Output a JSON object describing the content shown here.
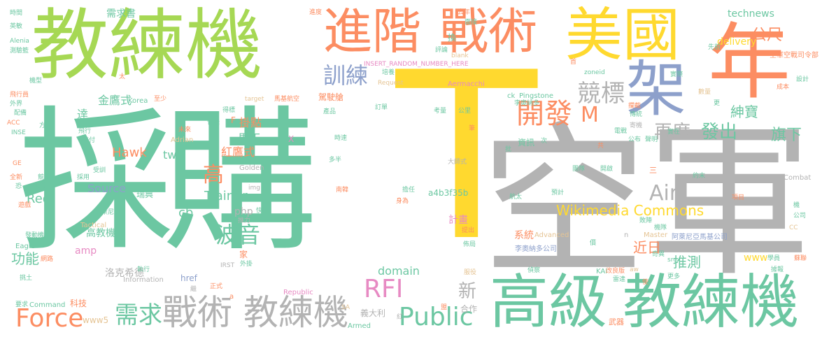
{
  "palette": {
    "teal": "#6cc7a2",
    "green": "#a6d854",
    "orange": "#fc8d62",
    "yellow": "#ffd92f",
    "grey": "#b3b3b3",
    "blue": "#8da0cb",
    "pink": "#e78ac3",
    "tan": "#e5c494"
  },
  "words": [
    {
      "id": "w0",
      "text": "採購",
      "color": "teal"
    },
    {
      "id": "w1",
      "text": "T",
      "color": "yellow"
    },
    {
      "id": "w2",
      "text": "空軍",
      "color": "grey"
    },
    {
      "id": "w3",
      "text": "教練機",
      "color": "green"
    },
    {
      "id": "w4",
      "text": "高級",
      "color": "teal"
    },
    {
      "id": "w5",
      "text": "教練機",
      "color": "teal"
    },
    {
      "id": "w6",
      "text": "進階",
      "color": "orange"
    },
    {
      "id": "w7",
      "text": "戰術",
      "color": "orange"
    },
    {
      "id": "w8",
      "text": "美國",
      "color": "yellow"
    },
    {
      "id": "w9",
      "text": "年",
      "color": "orange"
    },
    {
      "id": "w10",
      "text": "架",
      "color": "blue"
    },
    {
      "id": "w11",
      "text": "戰術",
      "color": "grey"
    },
    {
      "id": "w12",
      "text": "教練機",
      "color": "grey"
    },
    {
      "id": "w13",
      "text": "Public",
      "color": "teal"
    },
    {
      "id": "w14",
      "text": "Force",
      "color": "orange"
    },
    {
      "id": "w15",
      "text": "需求",
      "color": "teal"
    },
    {
      "id": "w16",
      "text": "RFI",
      "color": "pink"
    },
    {
      "id": "w17",
      "text": "開發",
      "color": "orange"
    },
    {
      "id": "w18",
      "text": "競標",
      "color": "grey"
    },
    {
      "id": "w19",
      "text": "M",
      "color": "orange"
    },
    {
      "id": "w20",
      "text": "訓練",
      "color": "blue"
    },
    {
      "id": "w21",
      "text": "公尺",
      "color": "orange"
    },
    {
      "id": "w22",
      "text": "Air",
      "color": "grey"
    },
    {
      "id": "w23",
      "text": "波音",
      "color": "teal"
    },
    {
      "id": "w24",
      "text": "再度",
      "color": "grey"
    },
    {
      "id": "w25",
      "text": "發出",
      "color": "teal"
    },
    {
      "id": "w26",
      "text": "紳寶",
      "color": "teal"
    },
    {
      "id": "w27",
      "text": "旗下",
      "color": "teal"
    },
    {
      "id": "w28",
      "text": "推測",
      "color": "teal"
    },
    {
      "id": "w29",
      "text": "近日",
      "color": "orange"
    },
    {
      "id": "w30",
      "text": "Wikimedia Commons",
      "color": "yellow"
    },
    {
      "id": "w31",
      "text": "新",
      "color": "grey"
    },
    {
      "id": "w32",
      "text": "高",
      "color": "orange"
    },
    {
      "id": "w33",
      "text": "功能",
      "color": "teal"
    },
    {
      "id": "w34",
      "text": "Red",
      "color": "teal"
    },
    {
      "id": "w35",
      "text": "Hawk",
      "color": "orange"
    },
    {
      "id": "w36",
      "text": "Trainer",
      "color": "teal"
    },
    {
      "id": "w37",
      "text": "Source",
      "color": "blue"
    },
    {
      "id": "w38",
      "text": "cb",
      "color": "teal"
    },
    {
      "id": "w39",
      "text": "php",
      "color": "grey"
    },
    {
      "id": "w40",
      "text": "domain",
      "color": "teal"
    },
    {
      "id": "w41",
      "text": "紅鷹式",
      "color": "orange"
    },
    {
      "id": "w42",
      "text": "馬丁",
      "color": "teal"
    },
    {
      "id": "w43",
      "text": "掛點",
      "color": "orange"
    },
    {
      "id": "w44",
      "text": "金鷹式",
      "color": "teal"
    },
    {
      "id": "w45",
      "text": "達",
      "color": "teal"
    },
    {
      "id": "w46",
      "text": "tw",
      "color": "teal"
    },
    {
      "id": "w47",
      "text": "www",
      "color": "yellow"
    },
    {
      "id": "w48",
      "text": "technews",
      "color": "teal"
    },
    {
      "id": "w49",
      "text": "delivery",
      "color": "yellow"
    },
    {
      "id": "w50",
      "text": "需求書",
      "color": "teal"
    },
    {
      "id": "w51",
      "text": "amp",
      "color": "pink"
    },
    {
      "id": "w52",
      "text": "高教機",
      "color": "teal"
    },
    {
      "id": "w53",
      "text": "洛克希德",
      "color": "grey"
    },
    {
      "id": "w54",
      "text": "科技",
      "color": "orange"
    },
    {
      "id": "w55",
      "text": "www5",
      "color": "tan"
    },
    {
      "id": "w56",
      "text": "義大利",
      "color": "grey"
    },
    {
      "id": "w57",
      "text": "合作",
      "color": "grey"
    },
    {
      "id": "w58",
      "text": "計畫",
      "color": "pink"
    },
    {
      "id": "w59",
      "text": "系統",
      "color": "orange"
    },
    {
      "id": "w60",
      "text": "a4b3f35b",
      "color": "teal"
    },
    {
      "id": "w61",
      "text": "href",
      "color": "blue"
    },
    {
      "id": "w62",
      "text": "駕駛艙",
      "color": "orange"
    },
    {
      "id": "w63",
      "text": "X",
      "color": "pink"
    },
    {
      "id": "w64",
      "text": "瑞典",
      "color": "teal"
    },
    {
      "id": "w65",
      "text": "F",
      "color": "orange"
    },
    {
      "id": "w66",
      "text": "資訊",
      "color": "teal"
    },
    {
      "id": "w67",
      "text": "李奧納多公司",
      "color": "blue"
    },
    {
      "id": "w68",
      "text": "阿萊尼亞馬基公司",
      "color": "blue"
    },
    {
      "id": "w69",
      "text": "空軍空戰司令部",
      "color": "orange"
    },
    {
      "id": "w70",
      "text": "武器",
      "color": "orange"
    },
    {
      "id": "w71",
      "text": "Armed",
      "color": "teal"
    },
    {
      "id": "w72",
      "text": "Republic",
      "color": "pink"
    },
    {
      "id": "w73",
      "text": "Command",
      "color": "teal"
    },
    {
      "id": "w74",
      "text": "Information",
      "color": "grey"
    },
    {
      "id": "w75",
      "text": "Eagle",
      "color": "teal"
    },
    {
      "id": "w76",
      "text": "Tactical",
      "color": "tan"
    },
    {
      "id": "w77",
      "text": "Golden",
      "color": "grey"
    },
    {
      "id": "w78",
      "text": "Advanced",
      "color": "tan"
    },
    {
      "id": "w79",
      "text": "Master",
      "color": "tan"
    },
    {
      "id": "w80",
      "text": "Combat",
      "color": "grey"
    },
    {
      "id": "w81",
      "text": "Korea",
      "color": "teal"
    },
    {
      "id": "w82",
      "text": "Adrian",
      "color": "tan"
    },
    {
      "id": "w83",
      "text": "Aermacchi",
      "color": "pink"
    },
    {
      "id": "w84",
      "text": "Pingstone",
      "color": "teal"
    },
    {
      "id": "w85",
      "text": "INSERT_RANDOM_NUMBER_HERE",
      "color": "pink"
    },
    {
      "id": "w86",
      "text": "blank",
      "color": "tan"
    },
    {
      "id": "w87",
      "text": "Request",
      "color": "tan"
    },
    {
      "id": "w88",
      "text": "zoneid",
      "color": "teal"
    },
    {
      "id": "w89",
      "text": "target",
      "color": "tan"
    },
    {
      "id": "w90",
      "text": "src",
      "color": "teal"
    },
    {
      "id": "w91",
      "text": "img",
      "color": "grey"
    },
    {
      "id": "w92",
      "text": "ck",
      "color": "teal"
    },
    {
      "id": "w93",
      "text": "KAI",
      "color": "teal"
    },
    {
      "id": "w94",
      "text": "aw",
      "color": "tan"
    },
    {
      "id": "w95",
      "text": "IRST",
      "color": "grey"
    },
    {
      "id": "w96",
      "text": "ACC",
      "color": "orange"
    },
    {
      "id": "w97",
      "text": "INSE",
      "color": "teal"
    },
    {
      "id": "w98",
      "text": "GE",
      "color": "orange"
    },
    {
      "id": "w99",
      "text": "CC",
      "color": "tan"
    },
    {
      "id": "w100",
      "text": "SA",
      "color": "tan"
    },
    {
      "id": "w101",
      "text": "Alenia",
      "color": "teal"
    },
    {
      "id": "w102",
      "text": "時間",
      "color": "teal"
    },
    {
      "id": "w103",
      "text": "英敏",
      "color": "teal"
    },
    {
      "id": "w104",
      "text": "測驗籃",
      "color": "teal"
    },
    {
      "id": "w105",
      "text": "機型",
      "color": "teal"
    },
    {
      "id": "w106",
      "text": "飛行員",
      "color": "orange"
    },
    {
      "id": "w107",
      "text": "外界",
      "color": "teal"
    },
    {
      "id": "w108",
      "text": "配備",
      "color": "teal"
    },
    {
      "id": "w109",
      "text": "方",
      "color": "teal"
    },
    {
      "id": "w110",
      "text": "全新",
      "color": "orange"
    },
    {
      "id": "w111",
      "text": "恐",
      "color": "teal"
    },
    {
      "id": "w112",
      "text": "遊戲",
      "color": "orange"
    },
    {
      "id": "w113",
      "text": "發動機",
      "color": "teal"
    },
    {
      "id": "w114",
      "text": "網路",
      "color": "orange"
    },
    {
      "id": "w115",
      "text": "挑土",
      "color": "teal"
    },
    {
      "id": "w116",
      "text": "要求",
      "color": "teal"
    },
    {
      "id": "w117",
      "text": "阿萊尼亞",
      "color": "teal"
    },
    {
      "id": "w118",
      "text": "受訓",
      "color": "teal"
    },
    {
      "id": "w119",
      "text": "競爭",
      "color": "teal"
    },
    {
      "id": "w120",
      "text": "採用",
      "color": "teal"
    },
    {
      "id": "w121",
      "text": "想敵",
      "color": "teal"
    },
    {
      "id": "w122",
      "text": "執行",
      "color": "teal"
    },
    {
      "id": "w123",
      "text": "繼",
      "color": "grey"
    },
    {
      "id": "w124",
      "text": "正式",
      "color": "orange"
    },
    {
      "id": "w125",
      "text": "家",
      "color": "orange"
    },
    {
      "id": "w126",
      "text": "外掛",
      "color": "teal"
    },
    {
      "id": "w127",
      "text": "推力",
      "color": "grey"
    },
    {
      "id": "w128",
      "text": "快",
      "color": "teal"
    },
    {
      "id": "w129",
      "text": "至少",
      "color": "orange"
    },
    {
      "id": "w130",
      "text": "太",
      "color": "orange"
    },
    {
      "id": "w131",
      "text": "得標",
      "color": "teal"
    },
    {
      "id": "w132",
      "text": "包括",
      "color": "teal"
    },
    {
      "id": "w133",
      "text": "未來",
      "color": "orange"
    },
    {
      "id": "w134",
      "text": "飛行",
      "color": "teal"
    },
    {
      "id": "w135",
      "text": "交付",
      "color": "teal"
    },
    {
      "id": "w136",
      "text": "馬基航空",
      "color": "orange"
    },
    {
      "id": "w137",
      "text": "產品",
      "color": "teal"
    },
    {
      "id": "w138",
      "text": "時速",
      "color": "teal"
    },
    {
      "id": "w139",
      "text": "訂單",
      "color": "teal"
    },
    {
      "id": "w140",
      "text": "多半",
      "color": "teal"
    },
    {
      "id": "w141",
      "text": "擔任",
      "color": "teal"
    },
    {
      "id": "w142",
      "text": "南韓",
      "color": "orange"
    },
    {
      "id": "w143",
      "text": "身為",
      "color": "orange"
    },
    {
      "id": "w144",
      "text": "提出",
      "color": "orange"
    },
    {
      "id": "w145",
      "text": "佈局",
      "color": "teal"
    },
    {
      "id": "w146",
      "text": "服役",
      "color": "tan"
    },
    {
      "id": "w147",
      "text": "大師式",
      "color": "grey"
    },
    {
      "id": "w148",
      "text": "預計",
      "color": "teal"
    },
    {
      "id": "w149",
      "text": "航太",
      "color": "teal"
    },
    {
      "id": "w150",
      "text": "團隊",
      "color": "teal"
    },
    {
      "id": "w151",
      "text": "開啟",
      "color": "teal"
    },
    {
      "id": "w152",
      "text": "共",
      "color": "orange"
    },
    {
      "id": "w153",
      "text": "更",
      "color": "teal"
    },
    {
      "id": "w154",
      "text": "去年",
      "color": "orange"
    },
    {
      "id": "w155",
      "text": "面接",
      "color": "teal"
    },
    {
      "id": "w156",
      "text": "評論",
      "color": "teal"
    },
    {
      "id": "w157",
      "text": "換",
      "color": "teal"
    },
    {
      "id": "w158",
      "text": "培養",
      "color": "teal"
    },
    {
      "id": "w159",
      "text": "首",
      "color": "orange"
    },
    {
      "id": "w160",
      "text": "先前",
      "color": "teal"
    },
    {
      "id": "w161",
      "text": "實際",
      "color": "teal"
    },
    {
      "id": "w162",
      "text": "數量",
      "color": "tan"
    },
    {
      "id": "w163",
      "text": "傳統",
      "color": "teal"
    },
    {
      "id": "w164",
      "text": "聲明",
      "color": "teal"
    },
    {
      "id": "w165",
      "text": "實在",
      "color": "teal"
    },
    {
      "id": "w166",
      "text": "公布",
      "color": "teal"
    },
    {
      "id": "w167",
      "text": "電戰",
      "color": "teal"
    },
    {
      "id": "w168",
      "text": "攔截",
      "color": "orange"
    },
    {
      "id": "w169",
      "text": "寄機",
      "color": "grey"
    },
    {
      "id": "w170",
      "text": "成本",
      "color": "orange"
    },
    {
      "id": "w171",
      "text": "設計",
      "color": "teal"
    },
    {
      "id": "w172",
      "text": "李奧納多",
      "color": "teal"
    },
    {
      "id": "w173",
      "text": "公里",
      "color": "teal"
    },
    {
      "id": "w174",
      "text": "考量",
      "color": "teal"
    },
    {
      "id": "w175",
      "text": "筆",
      "color": "orange"
    },
    {
      "id": "w176",
      "text": "次",
      "color": "teal"
    },
    {
      "id": "w177",
      "text": "批",
      "color": "teal"
    },
    {
      "id": "w178",
      "text": "項目",
      "color": "orange"
    },
    {
      "id": "w179",
      "text": "機",
      "color": "teal"
    },
    {
      "id": "w180",
      "text": "公司",
      "color": "teal"
    },
    {
      "id": "w181",
      "text": "敗陣",
      "color": "teal"
    },
    {
      "id": "w182",
      "text": "機隊",
      "color": "teal"
    },
    {
      "id": "w183",
      "text": "奇異",
      "color": "teal"
    },
    {
      "id": "w184",
      "text": "改良版",
      "color": "orange"
    },
    {
      "id": "w185",
      "text": "雷達",
      "color": "teal"
    },
    {
      "id": "w186",
      "text": "更多",
      "color": "teal"
    },
    {
      "id": "w187",
      "text": "使",
      "color": "orange"
    },
    {
      "id": "w188",
      "text": "學員",
      "color": "teal"
    },
    {
      "id": "w189",
      "text": "據報",
      "color": "teal"
    },
    {
      "id": "w190",
      "text": "蘇聯",
      "color": "orange"
    },
    {
      "id": "w191",
      "text": "偵察",
      "color": "teal"
    },
    {
      "id": "w192",
      "text": "紅",
      "color": "grey"
    },
    {
      "id": "w193",
      "text": "進度",
      "color": "orange"
    },
    {
      "id": "w194",
      "text": "三",
      "color": "orange"
    },
    {
      "id": "w195",
      "text": "約末",
      "color": "teal"
    },
    {
      "id": "w196",
      "text": "n",
      "color": "grey"
    },
    {
      "id": "w197",
      "text": "a",
      "color": "orange"
    },
    {
      "id": "w198",
      "text": "盟",
      "color": "orange"
    },
    {
      "id": "w199",
      "text": "價",
      "color": "teal"
    }
  ]
}
